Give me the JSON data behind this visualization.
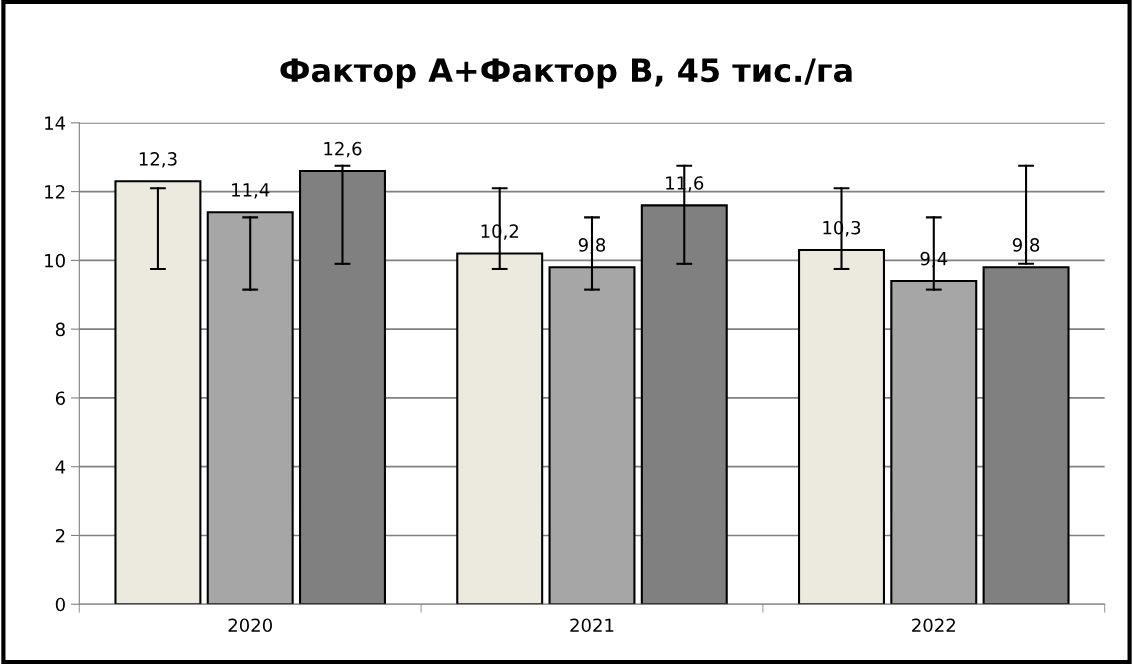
{
  "chart_data": {
    "type": "bar",
    "title": "Фактор А+Фактор В, 45 тис./га",
    "categories": [
      "2020",
      "2021",
      "2022"
    ],
    "series": [
      {
        "color": "#eceadf",
        "values": [
          12.3,
          10.2,
          10.3
        ],
        "value_labels": [
          "12,3",
          "10,2",
          "10,3"
        ],
        "errors": [
          [
            9.75,
            12.1
          ],
          [
            9.75,
            12.1
          ],
          [
            9.75,
            12.1
          ]
        ]
      },
      {
        "color": "#a6a6a6",
        "values": [
          11.4,
          9.8,
          9.4
        ],
        "value_labels": [
          "11,4",
          "9,8",
          "9,4"
        ],
        "errors": [
          [
            9.15,
            11.25
          ],
          [
            9.15,
            11.25
          ],
          [
            9.15,
            11.25
          ]
        ]
      },
      {
        "color": "#808080",
        "values": [
          12.6,
          11.6,
          9.8
        ],
        "value_labels": [
          "12,6",
          "11,6",
          "9,8"
        ],
        "errors": [
          [
            9.9,
            12.75
          ],
          [
            9.9,
            12.75
          ],
          [
            9.9,
            12.75
          ]
        ]
      }
    ],
    "ylim": [
      0,
      14
    ],
    "yticks": [
      0,
      2,
      4,
      6,
      8,
      10,
      12,
      14
    ],
    "grid": "y",
    "legend": false
  }
}
